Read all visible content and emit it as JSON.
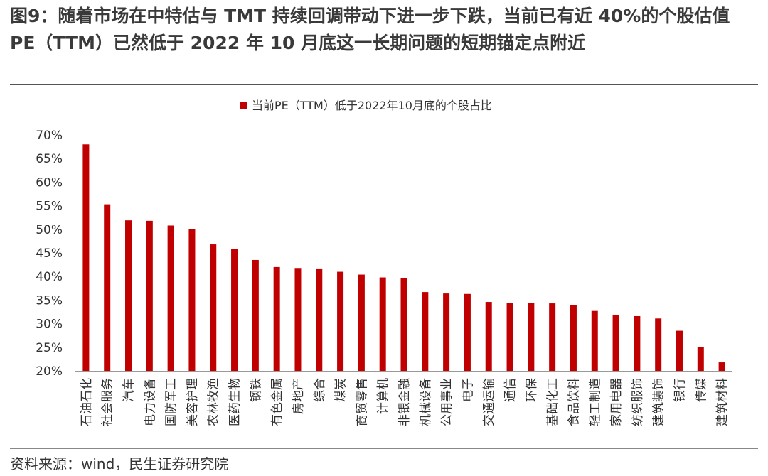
{
  "figure": {
    "title": "图9：随着市场在中特估与 TMT 持续回调带动下进一步下跌，当前已有近 40%的个股估值 PE（TTM）已然低于 2022 年 10 月底这一长期问题的短期锚定点附近",
    "source": "资料来源：wind，民生证券研究院"
  },
  "chart_data": {
    "type": "bar",
    "series": [
      {
        "name": "当前PE（TTM）低于2022年10月底的个股占比",
        "color": "#c00000",
        "values": [
          68.0,
          55.3,
          51.9,
          51.8,
          50.8,
          50.0,
          46.8,
          45.8,
          43.5,
          42.0,
          41.8,
          41.7,
          41.0,
          40.4,
          39.8,
          39.7,
          36.7,
          36.4,
          36.3,
          34.6,
          34.4,
          34.4,
          34.3,
          33.9,
          32.7,
          31.9,
          31.6,
          31.1,
          28.5,
          25.0,
          21.8
        ]
      }
    ],
    "categories": [
      "石油石化",
      "社会服务",
      "汽车",
      "电力设备",
      "国防军工",
      "美容护理",
      "农林牧渔",
      "医药生物",
      "钢铁",
      "有色金属",
      "房地产",
      "综合",
      "煤炭",
      "商贸零售",
      "计算机",
      "非银金融",
      "机械设备",
      "公用事业",
      "电子",
      "交通运输",
      "通信",
      "环保",
      "基础化工",
      "食品饮料",
      "轻工制造",
      "家用电器",
      "纺织服饰",
      "建筑装饰",
      "银行",
      "传媒",
      "建筑材料"
    ],
    "yticks": [
      "70%",
      "65%",
      "60%",
      "55%",
      "50%",
      "45%",
      "40%",
      "35%",
      "30%",
      "25%",
      "20%"
    ],
    "ylim": [
      20,
      70
    ],
    "ytick_step": 5,
    "legend": "top-center",
    "grid": false
  }
}
